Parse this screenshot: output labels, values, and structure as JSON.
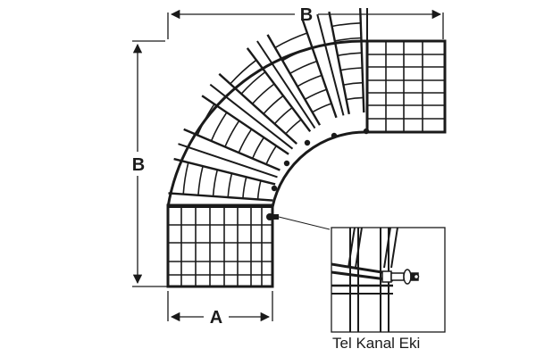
{
  "dimensions": {
    "top_label": "B",
    "left_label": "B",
    "bottom_label": "A"
  },
  "caption": "Tel Kanal Eki",
  "colors": {
    "line": "#1a1a1a",
    "background": "#ffffff"
  }
}
